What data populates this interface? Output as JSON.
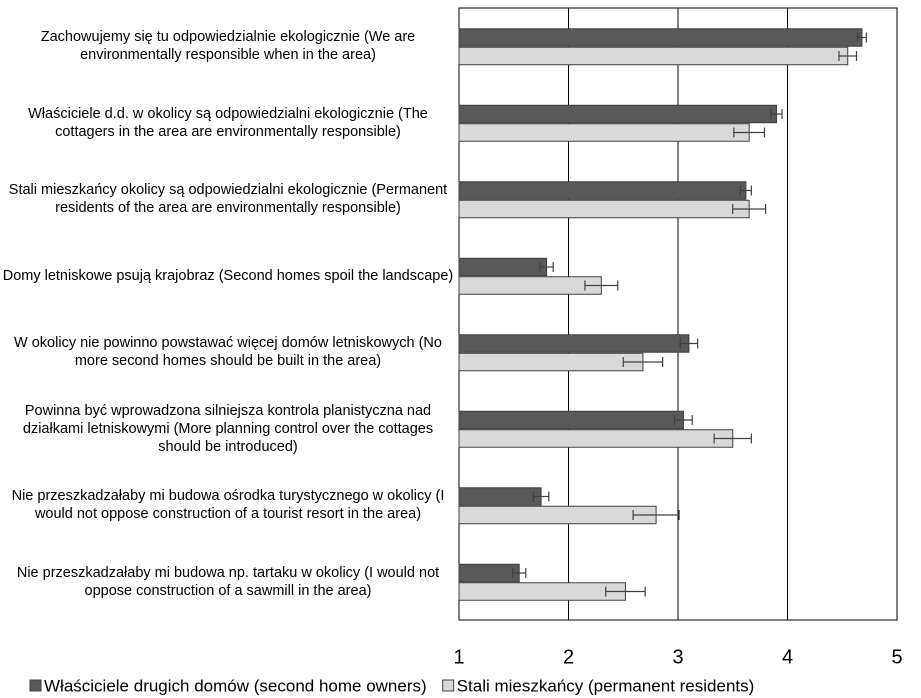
{
  "chart_data": {
    "type": "hbar",
    "categories": [
      "Zachowujemy się tu odpowiedzialnie ekologicznie (We are  environmentally responsible when in the area)",
      "Właściciele d.d. w okolicy są odpowiedzialni ekologicznie (The cottagers in the area are environmentally responsible)",
      "Stali mieszkańcy okolicy są odpowiedzialni ekologicznie (Permanent residents of the area are environmentally responsible)",
      "Domy letniskowe psują krajobraz (Second homes spoil the landscape)",
      "W okolicy nie powinno powstawać więcej domów letniskowych (No more second homes should be built in the area)",
      "Powinna być wprowadzona silniejsza kontrola planistyczna nad działkami letniskowymi (More planning control over the cottages should be introduced)",
      "Nie przeszkadzałaby mi budowa ośrodka turystycznego w okolicy (I would not oppose construction of a tourist resort in the area)",
      "Nie przeszkadzałaby mi budowa np. tartaku w okolicy (I would not oppose construction of a sawmill in the area)"
    ],
    "series": [
      {
        "name": "Właściciele drugich domów (second home owners)",
        "color": "#595959",
        "values": [
          4.68,
          3.9,
          3.62,
          1.8,
          3.1,
          3.05,
          1.75,
          1.55
        ],
        "errors": [
          0.04,
          0.05,
          0.05,
          0.06,
          0.08,
          0.08,
          0.07,
          0.06
        ]
      },
      {
        "name": "Stali mieszkańcy (permanent residents)",
        "color": "#d9d9d9",
        "values": [
          4.55,
          3.65,
          3.65,
          2.3,
          2.68,
          3.5,
          2.8,
          2.52
        ],
        "errors": [
          0.08,
          0.14,
          0.15,
          0.15,
          0.18,
          0.17,
          0.21,
          0.18
        ]
      }
    ],
    "xlim": [
      1,
      5
    ],
    "xticks": [
      1,
      2,
      3,
      4,
      5
    ],
    "grid": true,
    "legend": "bottom"
  }
}
